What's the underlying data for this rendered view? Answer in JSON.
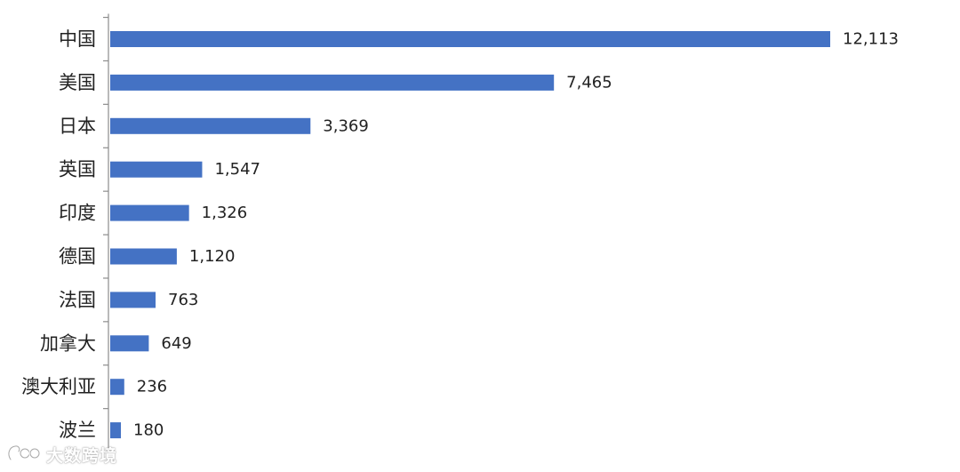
{
  "chart_data": {
    "type": "bar",
    "orientation": "horizontal",
    "categories": [
      "中国",
      "美国",
      "日本",
      "英国",
      "印度",
      "德国",
      "法国",
      "加拿大",
      "澳大利亚",
      "波兰"
    ],
    "values": [
      12113,
      7465,
      3369,
      1547,
      1326,
      1120,
      763,
      649,
      236,
      180
    ],
    "value_labels": [
      "12,113",
      "7,465",
      "3,369",
      "1,547",
      "1,326",
      "1,120",
      "763",
      "649",
      "236",
      "180"
    ],
    "title": "",
    "xlabel": "",
    "ylabel": "",
    "xlim": [
      0,
      12113
    ],
    "grid": false,
    "bar_color": "#4472c4"
  },
  "watermark": {
    "text": "大数跨境",
    "icon": "brand-logo-icon"
  }
}
